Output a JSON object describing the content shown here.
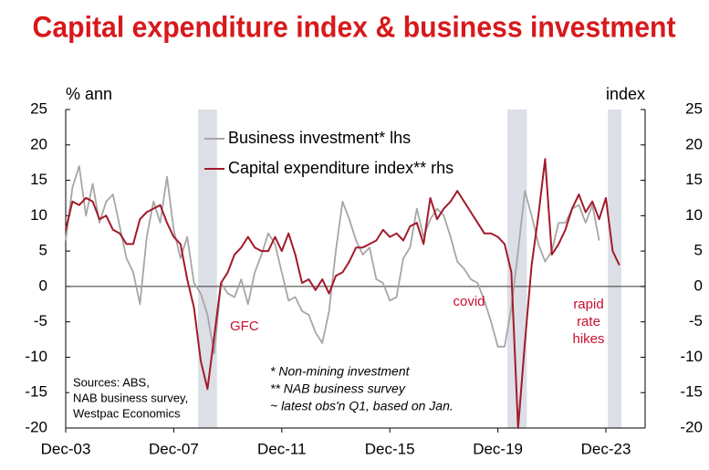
{
  "chart_data": {
    "type": "line",
    "title": "Capital expenditure index & business investment",
    "y_label": "% ann",
    "y2_label": "index",
    "categories": [
      "Dec-03",
      null,
      null,
      null,
      null,
      null,
      null,
      null,
      null,
      null,
      null,
      null,
      null,
      null,
      null,
      null,
      "Dec-07",
      null,
      null,
      null,
      null,
      null,
      null,
      null,
      null,
      null,
      null,
      null,
      null,
      null,
      null,
      null,
      "Dec-11",
      null,
      null,
      null,
      null,
      null,
      null,
      null,
      null,
      null,
      null,
      null,
      null,
      null,
      null,
      null,
      "Dec-15",
      null,
      null,
      null,
      null,
      null,
      null,
      null,
      null,
      null,
      null,
      null,
      null,
      null,
      null,
      null,
      "Dec-19",
      null,
      null,
      null,
      null,
      null,
      null,
      null,
      null,
      null,
      null,
      null,
      null,
      null,
      null,
      null,
      "Dec-23",
      null,
      null
    ],
    "series": [
      {
        "name": "Business investment* lhs",
        "color": "#a6a6a6",
        "axis": "y",
        "values": [
          6.5,
          14,
          17,
          10,
          14.5,
          9,
          12,
          13,
          8.5,
          4,
          2,
          -2.5,
          7,
          12,
          9,
          15.5,
          8,
          4,
          7,
          0.5,
          -1,
          -4,
          -9.5,
          0.5,
          -1,
          -1.5,
          1,
          -2.5,
          2,
          4.5,
          7.5,
          6,
          2,
          -2,
          -1.5,
          -3.5,
          -4,
          -6.5,
          -8,
          -3.5,
          5,
          12,
          9.5,
          6.5,
          4.5,
          5.5,
          1,
          0.5,
          -2,
          -1.5,
          4,
          5.5,
          11,
          7,
          9.5,
          11,
          10,
          7,
          3.5,
          2.5,
          1,
          0.5,
          -2,
          -5,
          -8.5,
          -8.5,
          -3,
          5,
          13.5,
          10,
          6,
          3.5,
          5,
          9,
          9,
          11,
          11.5,
          9,
          11.5,
          6.5,
          null,
          null,
          null
        ]
      },
      {
        "name": "Capital expenditure index** rhs",
        "color": "#a31a2a",
        "axis": "y2",
        "values": [
          8,
          12,
          11.5,
          12.5,
          12,
          9.5,
          10,
          8,
          7.5,
          6,
          6,
          9.5,
          10.5,
          11,
          11.5,
          9,
          7,
          6,
          1,
          -3,
          -10.5,
          -14.5,
          -7,
          0.5,
          2,
          4.5,
          5.5,
          7,
          5.5,
          5,
          5,
          7,
          5,
          7.5,
          4.5,
          0.5,
          1,
          -0.5,
          1,
          -1,
          1.5,
          2,
          3.5,
          5.5,
          5.5,
          6,
          6.5,
          8,
          7,
          7.5,
          6.5,
          8.5,
          9,
          6,
          12.5,
          9.5,
          11,
          12,
          13.5,
          12,
          10.5,
          9,
          7.5,
          7.5,
          7,
          6,
          2,
          -20,
          -8,
          3,
          10,
          18,
          4.5,
          6,
          8,
          11,
          13,
          10.5,
          12,
          9.5,
          12.5,
          5,
          3
        ]
      }
    ],
    "ylim": [
      -20,
      25
    ],
    "yticks": [
      -20,
      -15,
      -10,
      -5,
      0,
      5,
      10,
      15,
      20,
      25
    ],
    "y2lim": [
      -20,
      25
    ],
    "y2ticks": [
      -20,
      -15,
      -10,
      -5,
      0,
      5,
      10,
      15,
      20,
      25
    ],
    "annotations": [
      "GFC",
      "covid",
      "rapid",
      "rate",
      "hikes"
    ],
    "sources": [
      "Sources: ABS,",
      "NAB business survey,",
      "Westpac Economics"
    ],
    "footnotes": [
      "*  Non-mining investment",
      "**  NAB business survey",
      "~ latest obs'n Q1, based on Jan."
    ],
    "legend": "upper-left"
  }
}
